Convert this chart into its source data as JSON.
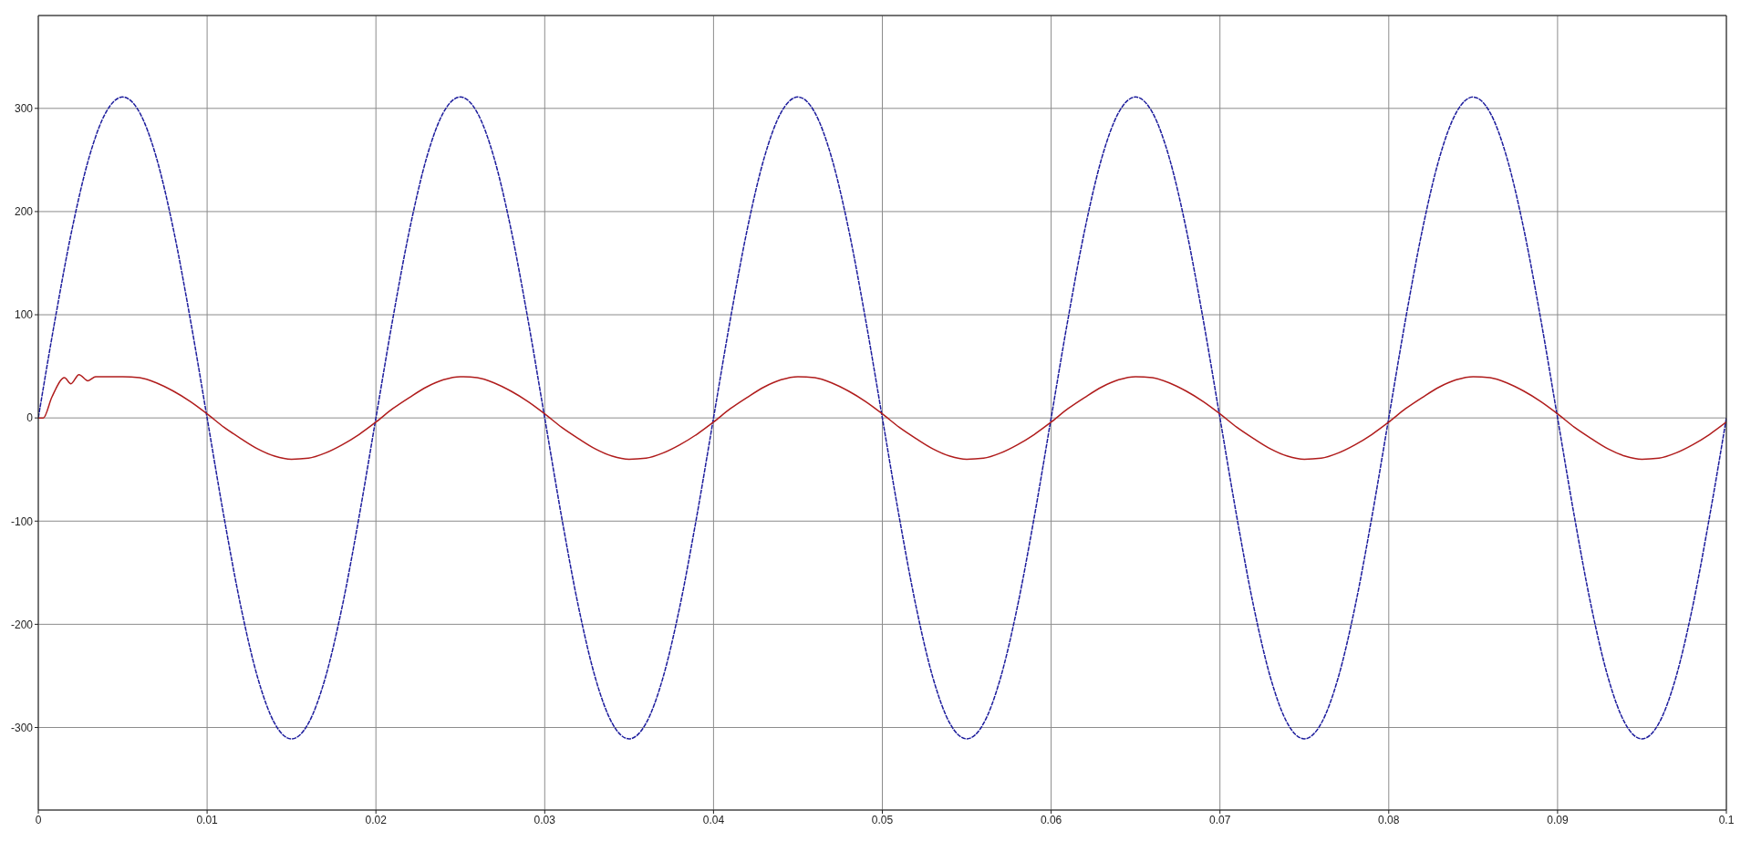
{
  "chart_data": {
    "type": "line",
    "xlim": [
      0,
      0.1
    ],
    "ylim": [
      -380,
      390
    ],
    "xticks": [
      0,
      0.01,
      0.02,
      0.03,
      0.04,
      0.05,
      0.06,
      0.07,
      0.08,
      0.09,
      0.1
    ],
    "yticks": [
      -300,
      -200,
      -100,
      0,
      100,
      200,
      300
    ],
    "grid": true,
    "marker": "none",
    "x": [
      0,
      0.001,
      0.002,
      0.003,
      0.004,
      0.005,
      0.006,
      0.007,
      0.008,
      0.009,
      0.01,
      0.011,
      0.012,
      0.013,
      0.014,
      0.015,
      0.016,
      0.017,
      0.018,
      0.019,
      0.02,
      0.021,
      0.022,
      0.023,
      0.024,
      0.025,
      0.026,
      0.027,
      0.028,
      0.029,
      0.03,
      0.031,
      0.032,
      0.033,
      0.034,
      0.035,
      0.036,
      0.037,
      0.038,
      0.039,
      0.04,
      0.041,
      0.042,
      0.043,
      0.044,
      0.045,
      0.046,
      0.047,
      0.048,
      0.049,
      0.05,
      0.051,
      0.052,
      0.053,
      0.054,
      0.055,
      0.056,
      0.057,
      0.058,
      0.059,
      0.06,
      0.061,
      0.062,
      0.063,
      0.064,
      0.065,
      0.066,
      0.067,
      0.068,
      0.069,
      0.07,
      0.071,
      0.072,
      0.073,
      0.074,
      0.075,
      0.076,
      0.077,
      0.078,
      0.079,
      0.08,
      0.081,
      0.082,
      0.083,
      0.084,
      0.085,
      0.086,
      0.087,
      0.088,
      0.089,
      0.09,
      0.091,
      0.092,
      0.093,
      0.094,
      0.095,
      0.096,
      0.097,
      0.098,
      0.099,
      0.1
    ],
    "series": [
      {
        "color": "#1c1c9c",
        "line_style": "dashed",
        "values": [
          0,
          96,
          183,
          252,
          296,
          311,
          296,
          252,
          183,
          96,
          0,
          -96,
          -183,
          -252,
          -296,
          -311,
          -296,
          -252,
          -183,
          -96,
          0,
          96,
          183,
          252,
          296,
          311,
          296,
          252,
          183,
          96,
          0,
          -96,
          -183,
          -252,
          -296,
          -311,
          -296,
          -252,
          -183,
          -96,
          0,
          96,
          183,
          252,
          296,
          311,
          296,
          252,
          183,
          96,
          0,
          -96,
          -183,
          -252,
          -296,
          -311,
          -296,
          -252,
          -183,
          -96,
          0,
          96,
          183,
          252,
          296,
          311,
          296,
          252,
          183,
          96,
          0,
          -96,
          -183,
          -252,
          -296,
          -311,
          -296,
          -252,
          -183,
          -96,
          0,
          96,
          183,
          252,
          296,
          311,
          296,
          252,
          183,
          96,
          0,
          -96,
          -183,
          -252,
          -296,
          -311,
          -296,
          -252,
          -183,
          -96,
          0
        ]
      },
      {
        "color": "#b01c1c",
        "line_style": "solid",
        "x": [
          0,
          0.0003,
          0.0008,
          0.00155,
          0.00193,
          0.00241,
          0.00294,
          0.0034,
          0.004,
          0.005,
          0.006,
          0.007,
          0.008,
          0.009,
          0.01,
          0.011,
          0.012,
          0.013,
          0.014,
          0.015,
          0.016,
          0.017,
          0.018,
          0.019,
          0.02,
          0.021,
          0.022,
          0.023,
          0.024,
          0.025,
          0.026,
          0.027,
          0.028,
          0.029,
          0.03,
          0.031,
          0.032,
          0.033,
          0.034,
          0.035,
          0.036,
          0.037,
          0.038,
          0.039,
          0.04,
          0.041,
          0.042,
          0.043,
          0.044,
          0.045,
          0.046,
          0.047,
          0.048,
          0.049,
          0.05,
          0.051,
          0.052,
          0.053,
          0.054,
          0.055,
          0.056,
          0.057,
          0.058,
          0.059,
          0.06,
          0.061,
          0.062,
          0.063,
          0.064,
          0.065,
          0.066,
          0.067,
          0.068,
          0.069,
          0.07,
          0.071,
          0.072,
          0.073,
          0.074,
          0.075,
          0.076,
          0.077,
          0.078,
          0.079,
          0.08,
          0.081,
          0.082,
          0.083,
          0.084,
          0.085,
          0.086,
          0.087,
          0.088,
          0.089,
          0.09,
          0.091,
          0.092,
          0.093,
          0.094,
          0.095,
          0.096,
          0.097,
          0.098,
          0.099,
          0.1
        ],
        "values": [
          0,
          0,
          20,
          39,
          33,
          42,
          36,
          40,
          40,
          40,
          39,
          34,
          26,
          16,
          4,
          -9,
          -20,
          -30,
          -37,
          -40,
          -39,
          -34,
          -26,
          -16,
          -4,
          9,
          20,
          30,
          37,
          40,
          39,
          34,
          26,
          16,
          4,
          -9,
          -20,
          -30,
          -37,
          -40,
          -39,
          -34,
          -26,
          -16,
          -4,
          9,
          20,
          30,
          37,
          40,
          39,
          34,
          26,
          16,
          4,
          -9,
          -20,
          -30,
          -37,
          -40,
          -39,
          -34,
          -26,
          -16,
          -4,
          9,
          20,
          30,
          37,
          40,
          39,
          34,
          26,
          16,
          4,
          -9,
          -20,
          -30,
          -37,
          -40,
          -39,
          -34,
          -26,
          -16,
          -4,
          9,
          20,
          30,
          37,
          40,
          39,
          34,
          26,
          16,
          4,
          -9,
          -20,
          -30,
          -37,
          -40,
          -39,
          -34,
          -26,
          -16,
          -4
        ]
      }
    ]
  }
}
